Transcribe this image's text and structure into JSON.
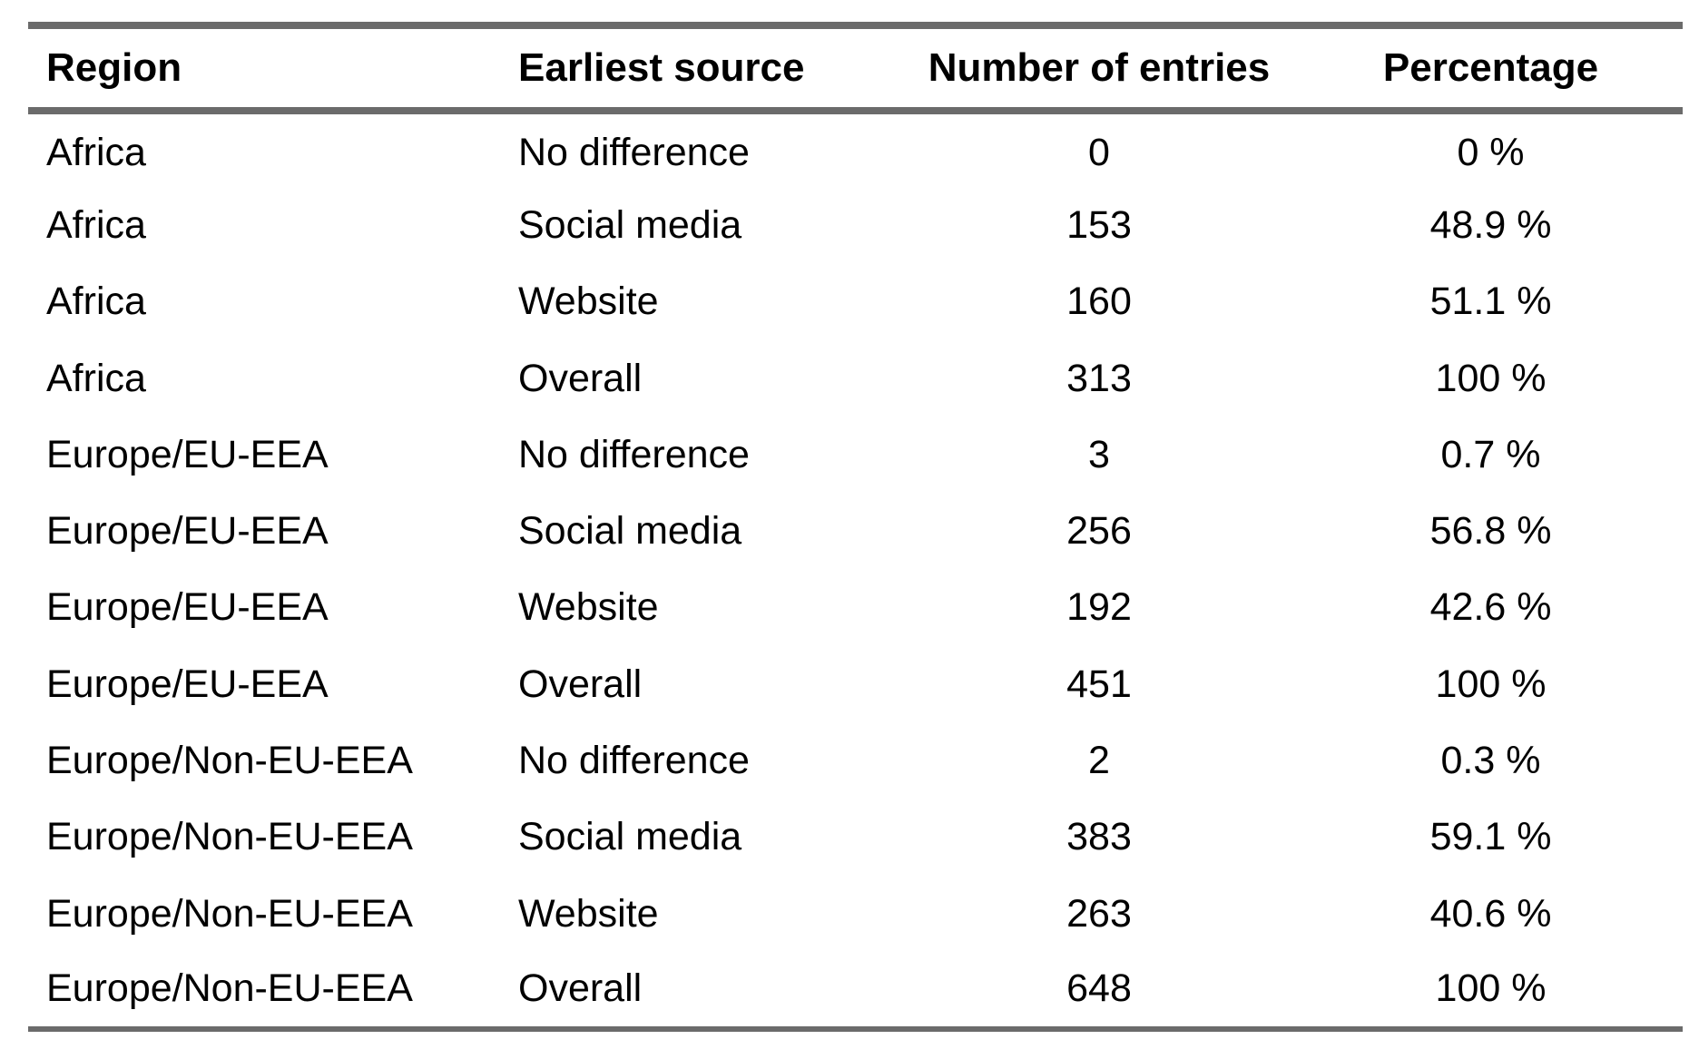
{
  "table": {
    "headers": [
      "Region",
      "Earliest source",
      "Number of entries",
      "Percentage"
    ],
    "rows": [
      [
        "Africa",
        "No difference",
        "0",
        "0 %"
      ],
      [
        "Africa",
        "Social media",
        "153",
        "48.9 %"
      ],
      [
        "Africa",
        "Website",
        "160",
        "51.1 %"
      ],
      [
        "Africa",
        "Overall",
        "313",
        "100 %"
      ],
      [
        "Europe/EU-EEA",
        "No difference",
        "3",
        "0.7 %"
      ],
      [
        "Europe/EU-EEA",
        "Social media",
        "256",
        "56.8 %"
      ],
      [
        "Europe/EU-EEA",
        "Website",
        "192",
        "42.6 %"
      ],
      [
        "Europe/EU-EEA",
        "Overall",
        "451",
        "100 %"
      ],
      [
        "Europe/Non-EU-EEA",
        "No difference",
        "2",
        "0.3 %"
      ],
      [
        "Europe/Non-EU-EEA",
        "Social media",
        "383",
        "59.1 %"
      ],
      [
        "Europe/Non-EU-EEA",
        "Website",
        "263",
        "40.6 %"
      ],
      [
        "Europe/Non-EU-EEA",
        "Overall",
        "648",
        "100 %"
      ]
    ]
  },
  "colors": {
    "rule": "#6b6b6b",
    "text": "#000000",
    "background": "#ffffff"
  }
}
